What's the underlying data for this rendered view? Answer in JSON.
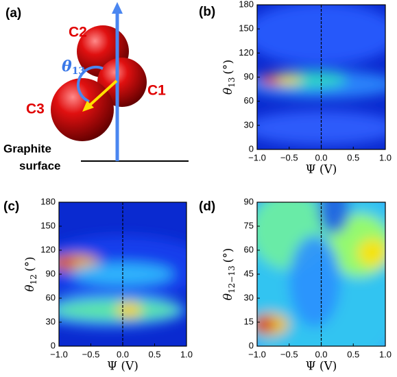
{
  "diagram": {
    "panel": "(a)",
    "atoms": [
      "C1",
      "C2",
      "C3"
    ],
    "angle": {
      "symbol": "θ",
      "subscript": "13"
    },
    "surface": [
      "Graphite",
      "surface"
    ]
  },
  "chart_data": [
    {
      "type": "contour",
      "panel": "(b)",
      "xlabel": "Ψ (V)",
      "ylabel": {
        "symbol": "θ",
        "subscript": "13",
        "unit": "(°)"
      },
      "xlim": [
        -1,
        1
      ],
      "ylim": [
        0,
        180
      ],
      "xticks": [
        {
          "value": -1,
          "label": "−1.0"
        },
        {
          "value": -0.5,
          "label": "−0.5"
        },
        {
          "value": 0,
          "label": "0.0"
        },
        0.5,
        {
          "value": 1,
          "label": "1.0"
        }
      ],
      "yticks": [
        0,
        30,
        60,
        90,
        120,
        150,
        180
      ],
      "reference_line_x": 0
    },
    {
      "type": "contour",
      "panel": "(c)",
      "xlabel": "Ψ (V)",
      "ylabel": {
        "symbol": "θ",
        "subscript": "12",
        "unit": "(°)"
      },
      "xlim": [
        -1,
        1
      ],
      "ylim": [
        0,
        180
      ],
      "xticks": [
        {
          "value": -1,
          "label": "−1.0"
        },
        {
          "value": -0.5,
          "label": "−0.5"
        },
        {
          "value": 0,
          "label": "0.0"
        },
        0.5,
        {
          "value": 1,
          "label": "1.0"
        }
      ],
      "yticks": [
        0,
        30,
        60,
        90,
        120,
        150,
        180
      ],
      "reference_line_x": 0
    },
    {
      "type": "contour",
      "panel": "(d)",
      "xlabel": "Ψ (V)",
      "ylabel": {
        "symbol": "θ",
        "subscript": "12−13",
        "unit": "(°)"
      },
      "xlim": [
        -1,
        1
      ],
      "ylim": [
        0,
        90
      ],
      "xticks": [
        {
          "value": -1,
          "label": "−1.0"
        },
        {
          "value": -0.5,
          "label": "−0.5"
        },
        {
          "value": 0,
          "label": "0.0"
        },
        0.5,
        {
          "value": 1,
          "label": "1.0"
        }
      ],
      "yticks": [
        0,
        15,
        30,
        45,
        60,
        75,
        90
      ],
      "reference_line_x": 0
    }
  ]
}
